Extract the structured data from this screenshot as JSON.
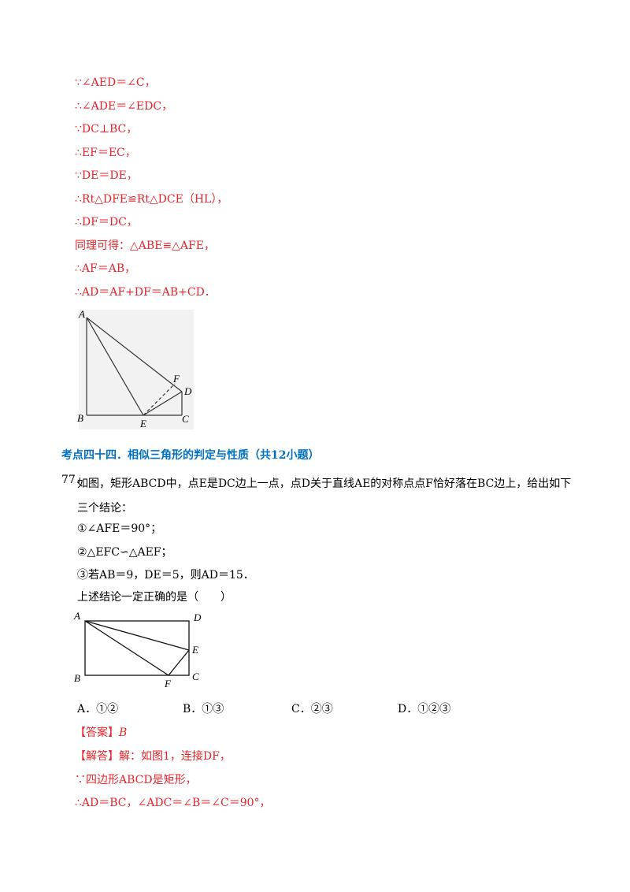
{
  "solution_prev": {
    "lines": [
      "∵∠AED＝∠C，",
      "∴∠ADE＝∠EDC，",
      "∵DC⊥BC，",
      "∴EF＝EC，",
      "∵DE＝DE，",
      "∴Rt△DFE≌Rt△DCE（HL），",
      "∴DF＝DC，",
      "同理可得：△ABE≌△AFE，",
      "∴AF＝AB，",
      "∴AD＝AF+DF＝AB+CD．"
    ]
  },
  "figure1": {
    "labels": [
      "A",
      "F",
      "D",
      "B",
      "E",
      "C"
    ]
  },
  "section": {
    "title": "考点四十四．相似三角形的判定与性质（共12小题）"
  },
  "question": {
    "number": "77．",
    "stem": "如图，矩形ABCD中，点E是DC边上一点，点D关于直线AE的对称点点F恰好落在BC边上，给出如下三个结论：",
    "statements": [
      "①∠AFE＝90°；",
      "②△EFC∽△AEF；",
      "③若AB＝9，DE＝5，则AD＝15．"
    ],
    "prompt": "上述结论一定正确的是（　　）",
    "options": [
      "A．①②",
      "B．①③",
      "C．②③",
      "D．①②③"
    ]
  },
  "figure2": {
    "labels": [
      "A",
      "D",
      "E",
      "B",
      "F",
      "C"
    ]
  },
  "answer": {
    "label": "【答案】",
    "value": "B"
  },
  "solution": {
    "lines": [
      "【解答】解：如图1，连接DF，",
      "∵四边形ABCD是矩形，",
      "∴AD＝BC，∠ADC＝∠B＝∠C＝90°，"
    ]
  }
}
